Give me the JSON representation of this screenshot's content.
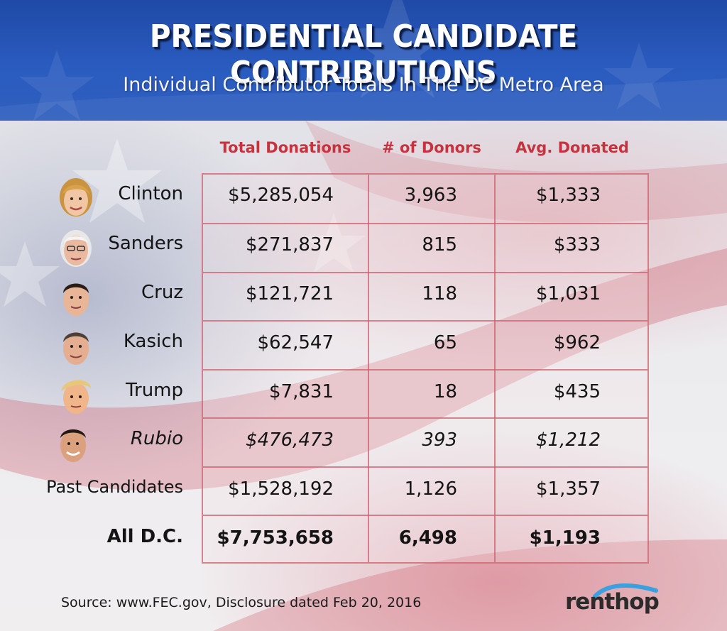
{
  "header": {
    "title": "PRESIDENTIAL CANDIDATE CONTRIBUTIONS",
    "subtitle": "Individual Contributor Totals In The DC Metro Area"
  },
  "columns": {
    "total": "Total Donations",
    "donors": "# of Donors",
    "avg": "Avg. Donated"
  },
  "rows": [
    {
      "name": "Clinton",
      "total": "$5,285,054",
      "donors": "3,963",
      "avg": "$1,333",
      "style": "normal",
      "avatar": "clinton-face-icon"
    },
    {
      "name": "Sanders",
      "total": "$271,837",
      "donors": "815",
      "avg": "$333",
      "style": "normal",
      "avatar": "sanders-face-icon"
    },
    {
      "name": "Cruz",
      "total": "$121,721",
      "donors": "118",
      "avg": "$1,031",
      "style": "normal",
      "avatar": "cruz-face-icon"
    },
    {
      "name": "Kasich",
      "total": "$62,547",
      "donors": "65",
      "avg": "$962",
      "style": "normal",
      "avatar": "kasich-face-icon"
    },
    {
      "name": "Trump",
      "total": "$7,831",
      "donors": "18",
      "avg": "$435",
      "style": "normal",
      "avatar": "trump-face-icon"
    },
    {
      "name": "Rubio",
      "total": "$476,473",
      "donors": "393",
      "avg": "$1,212",
      "style": "italic",
      "avatar": "rubio-face-icon"
    },
    {
      "name": "Past Candidates",
      "total": "$1,528,192",
      "donors": "1,126",
      "avg": "$1,357",
      "style": "normal",
      "avatar": ""
    },
    {
      "name": "All D.C.",
      "total": "$7,753,658",
      "donors": "6,498",
      "avg": "$1,193",
      "style": "bold",
      "avatar": ""
    }
  ],
  "footer": {
    "source": "Source: www.FEC.gov,  Disclosure dated Feb 20, 2016",
    "logo": "renthop"
  },
  "colors": {
    "header_blue": "#2a5bbf",
    "column_header_red": "#c8323f",
    "grid_line": "#cd5f6e",
    "logo_arc_blue": "#3aa0e0"
  }
}
